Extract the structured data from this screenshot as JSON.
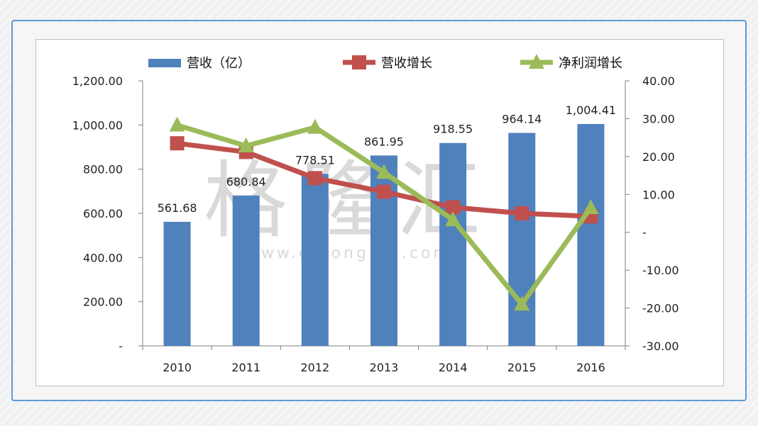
{
  "chart_data": {
    "type": "bar+line",
    "categories": [
      "2010",
      "2011",
      "2012",
      "2013",
      "2014",
      "2015",
      "2016"
    ],
    "y_left": {
      "range": [
        0,
        1200
      ],
      "ticks": [
        0,
        200,
        400,
        600,
        800,
        1000,
        1200
      ],
      "tick_labels": [
        "-",
        "200.00",
        "400.00",
        "600.00",
        "800.00",
        "1,000.00",
        "1,200.00"
      ]
    },
    "y_right": {
      "range": [
        -30,
        40
      ],
      "ticks": [
        -30,
        -20,
        -10,
        0,
        10,
        20,
        30,
        40
      ],
      "tick_labels": [
        "-30.00",
        "-20.00",
        "-10.00",
        "-",
        "10.00",
        "20.00",
        "30.00",
        "40.00"
      ]
    },
    "series": [
      {
        "name": "营收（亿）",
        "kind": "bar",
        "axis": "left",
        "color": "#4f81bd",
        "values": [
          561.68,
          680.84,
          778.51,
          861.95,
          918.55,
          964.14,
          1004.41
        ],
        "data_labels": [
          "561.68",
          "680.84",
          "778.51",
          "861.95",
          "918.55",
          "964.14",
          "1,004.41"
        ]
      },
      {
        "name": "营收增长",
        "kind": "line",
        "marker": "square",
        "axis": "right",
        "color": "#c0504d",
        "values": [
          23.5,
          21.2,
          14.3,
          10.7,
          6.6,
          5.0,
          4.2
        ]
      },
      {
        "name": "净利润增长",
        "kind": "line",
        "marker": "triangle",
        "axis": "right",
        "color": "#9bbb59",
        "values": [
          28.3,
          22.8,
          27.7,
          15.8,
          3.3,
          -19.0,
          6.5
        ]
      }
    ],
    "legend_position": "top",
    "grid": false
  }
}
